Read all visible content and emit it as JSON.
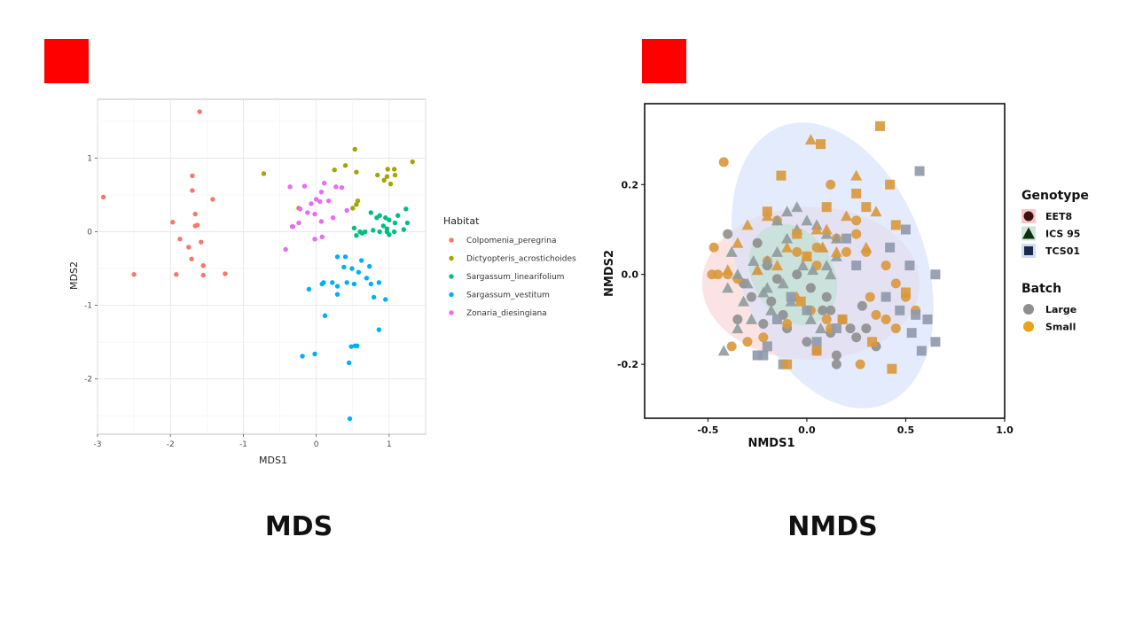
{
  "captions": {
    "left": "MDS",
    "right": "NMDS"
  },
  "colors": {
    "marker": "#ff0000"
  },
  "chart_data": [
    {
      "type": "scatter",
      "title": "",
      "xlabel": "MDS1",
      "ylabel": "MDS2",
      "xlim": [
        -3.0,
        1.5
      ],
      "ylim": [
        -2.75,
        1.8
      ],
      "xticks": [
        -3,
        -2,
        -1,
        0,
        1
      ],
      "yticks": [
        -2,
        -1,
        0,
        1
      ],
      "grid": true,
      "legend": {
        "title": "Habitat",
        "position": "right"
      },
      "series": [
        {
          "name": "Colpomenia_peregrina",
          "color": "#f8766d",
          "x": [
            -1.6,
            -2.92,
            -1.7,
            -1.7,
            -1.42,
            -1.66,
            -1.97,
            -1.63,
            -1.87,
            -1.75,
            -1.66,
            -1.58,
            -1.71,
            -1.55,
            -2.5,
            -1.92,
            -1.25,
            -1.55
          ],
          "y": [
            1.63,
            0.47,
            0.76,
            0.56,
            0.44,
            0.24,
            0.13,
            0.09,
            -0.1,
            -0.21,
            0.08,
            -0.14,
            -0.37,
            -0.46,
            -0.58,
            -0.58,
            -0.57,
            -0.59
          ]
        },
        {
          "name": "Dictyopteris_acrostichoides",
          "color": "#a3a500",
          "x": [
            -0.72,
            0.53,
            0.4,
            0.25,
            0.55,
            0.98,
            1.07,
            1.32,
            0.97,
            1.08,
            0.84,
            0.93,
            1.02,
            0.57,
            0.55,
            0.5,
            -0.24
          ],
          "y": [
            0.79,
            1.12,
            0.9,
            0.84,
            0.81,
            0.85,
            0.85,
            0.95,
            0.75,
            0.77,
            0.77,
            0.7,
            0.65,
            0.42,
            0.37,
            0.32,
            0.32
          ]
        },
        {
          "name": "Sargassum_linearifolium",
          "color": "#00bf7d",
          "x": [
            1.23,
            0.75,
            0.87,
            0.83,
            0.95,
            1.12,
            1.0,
            1.08,
            1.25,
            0.92,
            0.97,
            0.6,
            0.67,
            0.78,
            0.87,
            0.97,
            0.55,
            0.63,
            0.52,
            1.0,
            1.07,
            1.2
          ],
          "y": [
            0.31,
            0.26,
            0.22,
            0.19,
            0.19,
            0.22,
            0.16,
            0.12,
            0.12,
            0.08,
            0.04,
            0.0,
            0.0,
            0.02,
            0.0,
            0.0,
            -0.05,
            -0.02,
            0.05,
            -0.04,
            0.0,
            0.03
          ]
        },
        {
          "name": "Sargassum_vestitum",
          "color": "#00b0f6",
          "x": [
            0.29,
            0.4,
            0.38,
            0.49,
            0.62,
            0.1,
            0.58,
            0.73,
            0.69,
            0.86,
            0.22,
            0.29,
            0.42,
            0.52,
            0.75,
            0.79,
            -0.1,
            0.08,
            0.95,
            0.29,
            0.12,
            0.56,
            0.86,
            0.48,
            0.53,
            -0.19,
            -0.02,
            0.45,
            0.46
          ],
          "y": [
            -0.34,
            -0.34,
            -0.48,
            -0.5,
            -0.39,
            -0.69,
            -0.55,
            -0.47,
            -0.63,
            -0.69,
            -0.69,
            -0.74,
            -0.69,
            -0.71,
            -0.71,
            -0.89,
            -0.78,
            -0.71,
            -0.92,
            -0.85,
            -1.14,
            -1.55,
            -1.33,
            -1.56,
            -1.55,
            -1.69,
            -1.66,
            -1.78,
            -2.54
          ]
        },
        {
          "name": "Zonaria_diesingiana",
          "color": "#e76bf3",
          "x": [
            -0.36,
            -0.16,
            0.11,
            0.27,
            0.35,
            0.07,
            0.05,
            -0.22,
            -0.07,
            0.0,
            0.17,
            0.42,
            -0.24,
            -0.12,
            -0.02,
            0.23,
            -0.33,
            0.07,
            -0.32,
            -0.02,
            0.08,
            -0.42
          ],
          "y": [
            0.61,
            0.62,
            0.66,
            0.61,
            0.6,
            0.54,
            0.41,
            0.31,
            0.38,
            0.44,
            0.42,
            0.29,
            0.12,
            0.26,
            0.24,
            0.19,
            0.07,
            0.14,
            0.07,
            -0.1,
            -0.07,
            -0.24
          ]
        }
      ]
    },
    {
      "type": "scatter",
      "title": "",
      "xlabel": "NMDS1",
      "ylabel": "NMDS2",
      "xlim": [
        -0.82,
        1.0
      ],
      "ylim": [
        -0.32,
        0.38
      ],
      "xticks": [
        -0.5,
        0.0,
        0.5,
        1.0
      ],
      "xtick_labels": [
        "-0.5",
        "0.0",
        "0.5",
        "1.0"
      ],
      "yticks": [
        -0.2,
        0.0,
        0.2
      ],
      "ytick_labels": [
        "-0.2",
        "0.0",
        "0.2"
      ],
      "grid": false,
      "legends": [
        {
          "title": "Genotype",
          "position": "right",
          "entries": [
            {
              "label": "EET8",
              "shape": "circle",
              "color": "#3a1010",
              "halo": "#f7c7c7"
            },
            {
              "label": "ICS 95",
              "shape": "triangle",
              "color": "#0f2d0f",
              "halo": "#cde8d8"
            },
            {
              "label": "TCS01",
              "shape": "square",
              "color": "#1b2a4a",
              "halo": "#d3dcf5"
            }
          ]
        },
        {
          "title": "Batch",
          "position": "right",
          "entries": [
            {
              "label": "Large",
              "shape": "circle",
              "color": "#8e8e8e"
            },
            {
              "label": "Small",
              "shape": "circle",
              "color": "#e8a317"
            }
          ]
        }
      ],
      "ellipses": [
        {
          "group": "EET8",
          "color": "#fad4d4",
          "cx": 0.02,
          "cy": -0.02,
          "rx": 0.55,
          "ry": 0.17,
          "angle": 0
        },
        {
          "group": "TCS01",
          "color": "#d6e0fb",
          "cx": 0.13,
          "cy": 0.02,
          "rx": 0.47,
          "ry": 0.33,
          "angle": -20
        },
        {
          "group": "ICS 95",
          "color": "#bfe0d0",
          "cx": -0.07,
          "cy": 0.0,
          "rx": 0.27,
          "ry": 0.09,
          "angle": 60
        }
      ],
      "series": [
        {
          "name": "EET8 Large",
          "shape": "circle",
          "color": "#8e8e8e",
          "x": [
            -0.4,
            -0.25,
            -0.2,
            -0.15,
            -0.05,
            0.02,
            0.1,
            0.12,
            0.18,
            0.22,
            0.25,
            -0.28,
            -0.35,
            -0.1,
            0.0,
            0.05,
            0.15,
            0.28,
            0.3,
            0.35,
            -0.32,
            -0.18,
            0.08,
            0.12,
            0.15,
            -0.22,
            -0.12
          ],
          "y": [
            0.09,
            0.07,
            0.02,
            -0.01,
            0.0,
            -0.03,
            -0.05,
            -0.08,
            -0.1,
            -0.12,
            -0.14,
            -0.05,
            -0.1,
            -0.12,
            -0.15,
            -0.17,
            -0.18,
            -0.07,
            -0.12,
            -0.16,
            -0.02,
            -0.06,
            -0.08,
            -0.13,
            -0.2,
            -0.11,
            -0.09
          ]
        },
        {
          "name": "EET8 Small",
          "shape": "circle",
          "color": "#d9983b",
          "x": [
            -0.42,
            -0.47,
            -0.48,
            -0.35,
            -0.2,
            -0.05,
            0.05,
            0.15,
            0.25,
            0.3,
            0.4,
            0.45,
            0.5,
            0.35,
            0.27,
            0.12,
            0.02,
            -0.1,
            -0.22,
            -0.3,
            -0.38,
            -0.45,
            0.4,
            0.32,
            0.2,
            0.1,
            0.45,
            0.55,
            -0.15,
            0.12,
            0.25,
            0.05,
            -0.4
          ],
          "y": [
            0.25,
            0.06,
            0.0,
            -0.01,
            0.03,
            0.05,
            0.06,
            0.08,
            0.09,
            0.05,
            0.02,
            -0.02,
            -0.05,
            -0.09,
            -0.2,
            -0.12,
            -0.08,
            -0.11,
            -0.14,
            -0.15,
            -0.16,
            0.0,
            -0.1,
            -0.05,
            0.05,
            -0.1,
            -0.12,
            -0.08,
            0.12,
            0.2,
            0.12,
            0.02,
            0.0
          ]
        },
        {
          "name": "ICS 95 Large",
          "shape": "triangle",
          "color": "#8e9b9c",
          "x": [
            -0.35,
            -0.3,
            -0.25,
            -0.2,
            -0.15,
            -0.1,
            -0.05,
            0.0,
            0.05,
            0.1,
            0.15,
            -0.4,
            -0.32,
            -0.22,
            -0.12,
            -0.02,
            0.08,
            0.12,
            -0.28,
            -0.18,
            -0.08,
            0.02,
            -0.42,
            -0.35,
            -0.15,
            -0.05,
            0.15,
            0.07,
            -0.27,
            -0.2,
            -0.1,
            0.03,
            0.1,
            -0.38
          ],
          "y": [
            0.0,
            -0.02,
            0.01,
            0.03,
            0.05,
            0.08,
            0.1,
            0.12,
            0.11,
            0.09,
            0.04,
            -0.03,
            -0.06,
            -0.04,
            -0.02,
            0.02,
            0.06,
            0.0,
            -0.1,
            -0.08,
            -0.06,
            -0.1,
            -0.17,
            -0.12,
            0.12,
            0.15,
            0.08,
            -0.12,
            0.03,
            -0.03,
            0.14,
            0.01,
            0.02,
            0.05
          ]
        },
        {
          "name": "ICS 95 Small",
          "shape": "triangle",
          "color": "#d9983b",
          "x": [
            0.02,
            0.25,
            0.35,
            0.05,
            -0.3,
            -0.2,
            -0.1,
            0.0,
            0.1,
            -0.15,
            0.2,
            0.15,
            -0.05,
            0.08,
            -0.25,
            -0.35,
            -0.4,
            0.3
          ],
          "y": [
            0.3,
            0.22,
            0.14,
            0.1,
            0.11,
            0.13,
            0.06,
            0.04,
            0.1,
            0.02,
            0.13,
            0.05,
            -0.05,
            0.06,
            0.01,
            0.07,
            0.01,
            0.06
          ]
        },
        {
          "name": "TCS01 Large",
          "shape": "square",
          "color": "#8e99ab",
          "x": [
            0.57,
            0.5,
            0.42,
            0.52,
            0.65,
            0.4,
            0.47,
            0.55,
            0.61,
            0.53,
            0.65,
            0.58,
            -0.25,
            -0.2,
            -0.15,
            0.0,
            -0.08,
            -0.22,
            0.05,
            0.15,
            -0.12,
            0.2,
            0.25
          ],
          "y": [
            0.23,
            0.1,
            0.06,
            0.02,
            0.0,
            -0.05,
            -0.08,
            -0.09,
            -0.1,
            -0.13,
            -0.15,
            -0.17,
            -0.18,
            -0.16,
            -0.1,
            -0.08,
            -0.05,
            -0.18,
            -0.15,
            -0.12,
            -0.2,
            0.08,
            0.02
          ]
        },
        {
          "name": "TCS01 Small",
          "shape": "square",
          "color": "#d9983b",
          "x": [
            0.37,
            0.07,
            -0.13,
            0.42,
            0.45,
            0.43,
            0.33,
            0.5,
            0.3,
            0.1,
            -0.2,
            -0.1,
            -0.05,
            0.0,
            0.05,
            -0.03,
            0.25,
            0.18
          ],
          "y": [
            0.33,
            0.29,
            0.22,
            0.2,
            0.11,
            -0.21,
            -0.15,
            -0.04,
            0.15,
            0.15,
            0.14,
            -0.2,
            0.09,
            0.04,
            -0.17,
            -0.06,
            0.18,
            -0.1
          ]
        }
      ]
    }
  ]
}
